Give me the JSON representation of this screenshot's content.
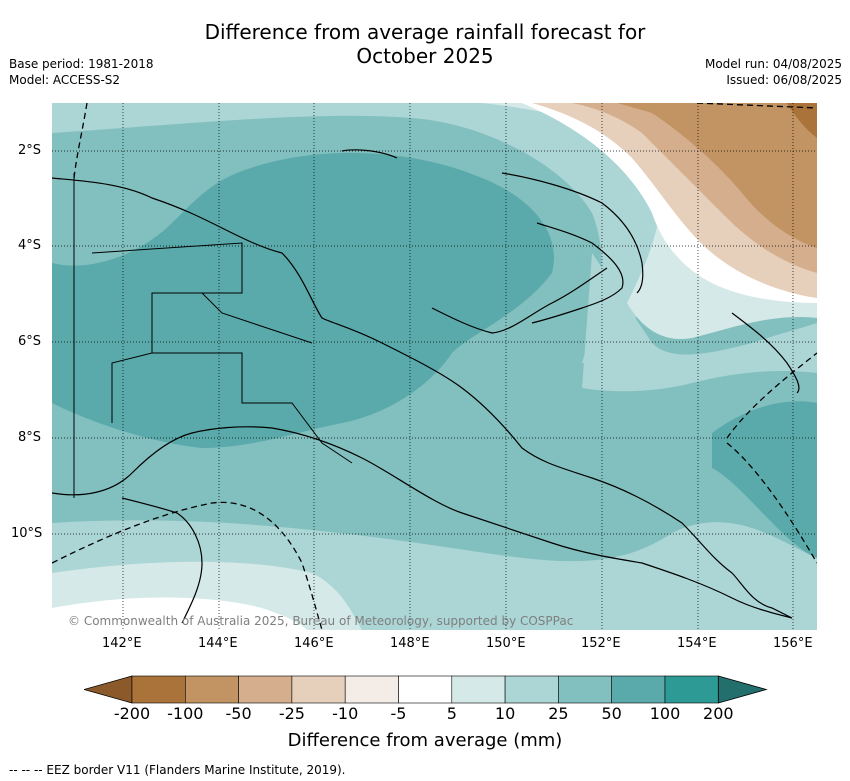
{
  "header": {
    "title_line1": "Difference from average rainfall forecast for",
    "title_line2": "October 2025",
    "base_period": "Base period: 1981-2018",
    "model": "Model: ACCESS-S2",
    "model_run": "Model run: 04/08/2025",
    "issued": "Issued: 06/08/2025"
  },
  "map": {
    "x_ticks": [
      "142°E",
      "144°E",
      "146°E",
      "148°E",
      "150°E",
      "152°E",
      "154°E",
      "156°E"
    ],
    "y_ticks": [
      "2°S",
      "4°S",
      "6°S",
      "8°S",
      "10°S"
    ],
    "copyright": "© Commonwealth of Australia 2025, Bureau of Meteorology, supported by COSPPac"
  },
  "colorbar": {
    "labels": [
      "-200",
      "-100",
      "-50",
      "-25",
      "-10",
      "-5",
      "5",
      "10",
      "25",
      "50",
      "100",
      "200"
    ],
    "colors": [
      "#8c5a2a",
      "#a97339",
      "#c29363",
      "#d5af8d",
      "#e6cfbb",
      "#f3ece7",
      "#ffffff",
      "#d5e9e8",
      "#acd5d5",
      "#82bfbf",
      "#5aaaab",
      "#2e9a95",
      "#236f6e"
    ],
    "title": "Difference from average (mm)"
  },
  "footer": {
    "eez_note": "--  --  -- EEZ border V11 (Flanders Marine Institute, 2019)."
  }
}
